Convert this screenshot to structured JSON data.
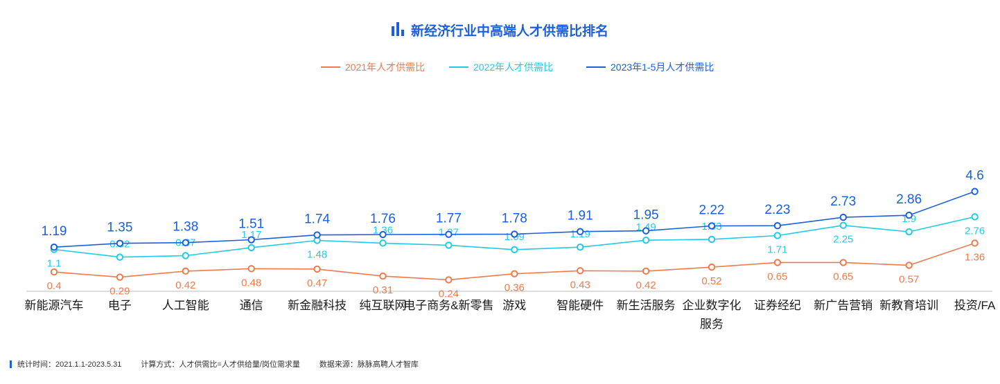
{
  "chart_data": {
    "type": "line",
    "title": "新经济行业中高端人才供需比排名",
    "categories": [
      "新能源汽车",
      "电子",
      "人工智能",
      "通信",
      "新金融科技",
      "纯互联网",
      "电子商务&新零售",
      "游戏",
      "智能硬件",
      "新生活服务",
      "企业数字化服务",
      "证券经纪",
      "新广告营销",
      "新教育培训",
      "投资/FA"
    ],
    "category_lines": [
      [
        "新能源汽车"
      ],
      [
        "电子"
      ],
      [
        "人工智能"
      ],
      [
        "通信"
      ],
      [
        "新金融科技"
      ],
      [
        "纯互联网"
      ],
      [
        "电子商务&新零售"
      ],
      [
        "游戏"
      ],
      [
        "智能硬件"
      ],
      [
        "新生活服务"
      ],
      [
        "企业数字化",
        "服务"
      ],
      [
        "证券经纪"
      ],
      [
        "新广告营销"
      ],
      [
        "新教育培训"
      ],
      [
        "投资/FA"
      ]
    ],
    "series": [
      {
        "name": "2021年人才供需比",
        "color": "#f07a4a",
        "values": [
          0.4,
          0.29,
          0.42,
          0.48,
          0.47,
          0.31,
          0.24,
          0.36,
          0.43,
          0.42,
          0.52,
          0.65,
          0.65,
          0.57,
          1.36
        ]
      },
      {
        "name": "2022年人才供需比",
        "color": "#1fcbe6",
        "values": [
          1.1,
          0.82,
          0.87,
          1.17,
          1.48,
          1.36,
          1.27,
          1.09,
          1.19,
          1.49,
          1.53,
          1.71,
          2.25,
          1.9,
          2.76
        ]
      },
      {
        "name": "2023年1-5月人才供需比",
        "color": "#1a5fe0",
        "values": [
          1.19,
          1.35,
          1.38,
          1.51,
          1.74,
          1.76,
          1.77,
          1.78,
          1.91,
          1.95,
          2.22,
          2.23,
          2.73,
          2.86,
          4.6
        ]
      }
    ],
    "legend_position": "top-center",
    "grid": false
  },
  "footer": {
    "period": "统计时间：2021.1.1-2023.5.31",
    "method": "计算方式：人才供需比=人才供给量/岗位需求量",
    "source": "数据来源：脉脉高聘人才智库"
  },
  "colors": {
    "title": "#1a5fe0",
    "axis": "#bbbbbb"
  }
}
